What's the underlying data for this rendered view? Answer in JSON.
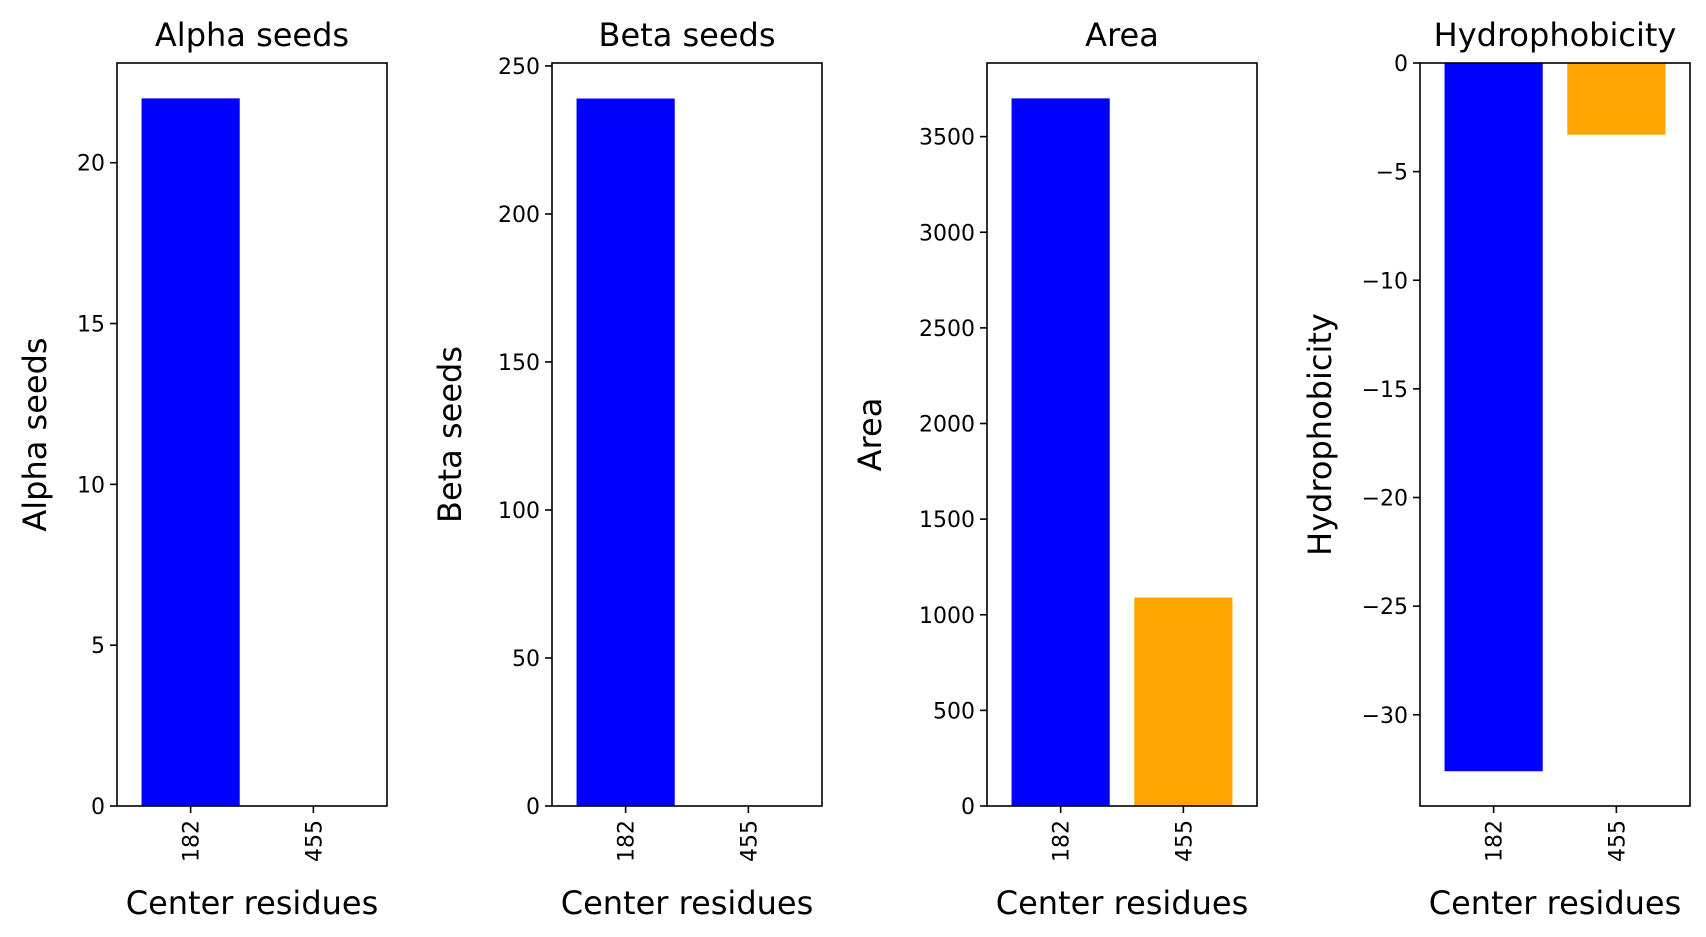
{
  "chart_data": [
    {
      "type": "bar",
      "title": "Alpha seeds",
      "xlabel": "Center residues",
      "ylabel": "Alpha seeds",
      "categories": [
        "182",
        "455"
      ],
      "values": [
        22,
        0
      ],
      "colors": [
        "#0000ff",
        "#ffa500"
      ],
      "ylim": [
        0,
        23.1
      ],
      "yticks": [
        0,
        5,
        10,
        15,
        20
      ],
      "ytick_labels": [
        "0",
        "5",
        "10",
        "15",
        "20"
      ]
    },
    {
      "type": "bar",
      "title": "Beta seeds",
      "xlabel": "Center residues",
      "ylabel": "Beta seeds",
      "categories": [
        "182",
        "455"
      ],
      "values": [
        239,
        0
      ],
      "colors": [
        "#0000ff",
        "#ffa500"
      ],
      "ylim": [
        0,
        251
      ],
      "yticks": [
        0,
        50,
        100,
        150,
        200,
        250
      ],
      "ytick_labels": [
        "0",
        "50",
        "100",
        "150",
        "200",
        "250"
      ]
    },
    {
      "type": "bar",
      "title": "Area",
      "xlabel": "Center residues",
      "ylabel": "Area",
      "categories": [
        "182",
        "455"
      ],
      "values": [
        3700,
        1090
      ],
      "colors": [
        "#0000ff",
        "#ffa500"
      ],
      "ylim": [
        0,
        3885
      ],
      "yticks": [
        0,
        500,
        1000,
        1500,
        2000,
        2500,
        3000,
        3500
      ],
      "ytick_labels": [
        "0",
        "500",
        "1000",
        "1500",
        "2000",
        "2500",
        "3000",
        "3500"
      ]
    },
    {
      "type": "bar",
      "title": "Hydrophobicity",
      "xlabel": "Center residues",
      "ylabel": "Hydrophobicity",
      "categories": [
        "182",
        "455"
      ],
      "values": [
        -32.6,
        -3.3
      ],
      "colors": [
        "#0000ff",
        "#ffa500"
      ],
      "ylim": [
        -34.2,
        0
      ],
      "yticks": [
        0,
        -5,
        -10,
        -15,
        -20,
        -25,
        -30
      ],
      "ytick_labels": [
        "0",
        "−5",
        "−10",
        "−15",
        "−20",
        "−25",
        "−30"
      ]
    }
  ]
}
